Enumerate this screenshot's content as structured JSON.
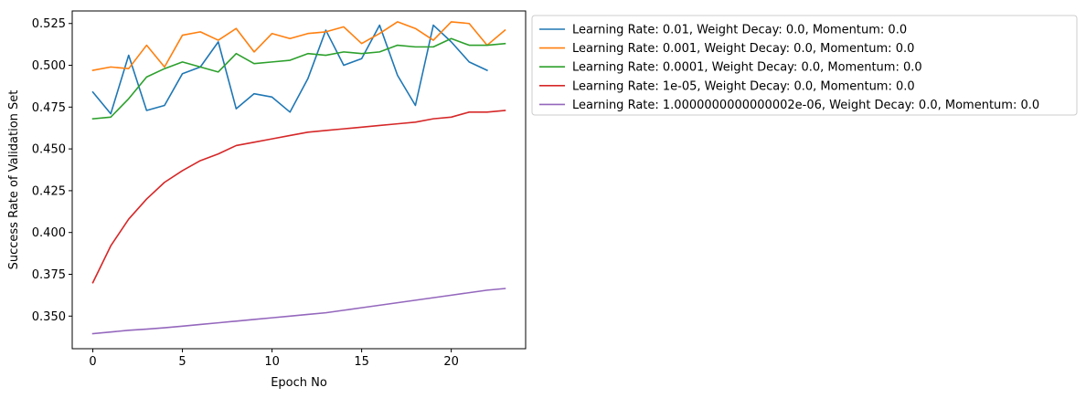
{
  "chart_data": {
    "type": "line",
    "title": "",
    "xlabel": "Epoch No",
    "ylabel": "Success Rate of Validation Set",
    "xlim": [
      -1.15,
      24.15
    ],
    "ylim": [
      0.3305,
      0.5325
    ],
    "xticks": [
      0,
      5,
      10,
      15,
      20
    ],
    "xtick_labels": [
      "0",
      "5",
      "10",
      "15",
      "20"
    ],
    "yticks": [
      0.35,
      0.375,
      0.4,
      0.425,
      0.45,
      0.475,
      0.5,
      0.525
    ],
    "ytick_labels": [
      "0.350",
      "0.375",
      "0.400",
      "0.425",
      "0.450",
      "0.475",
      "0.500",
      "0.525"
    ],
    "grid": false,
    "legend_position": "outside-right-top",
    "series": [
      {
        "name": "Learning Rate: 0.01, Weight Decay: 0.0, Momentum: 0.0",
        "color": "#1f77b4",
        "x": [
          0,
          1,
          2,
          3,
          4,
          5,
          6,
          7,
          8,
          9,
          10,
          11,
          12,
          13,
          14,
          15,
          16,
          17,
          18,
          19,
          20,
          21,
          22
        ],
        "values": [
          0.484,
          0.471,
          0.506,
          0.473,
          0.476,
          0.495,
          0.499,
          0.514,
          0.474,
          0.483,
          0.481,
          0.472,
          0.492,
          0.521,
          0.5,
          0.504,
          0.524,
          0.494,
          0.476,
          0.524,
          0.514,
          0.502,
          0.497
        ]
      },
      {
        "name": "Learning Rate: 0.001, Weight Decay: 0.0, Momentum: 0.0",
        "color": "#ff7f0e",
        "x": [
          0,
          1,
          2,
          3,
          4,
          5,
          6,
          7,
          8,
          9,
          10,
          11,
          12,
          13,
          14,
          15,
          16,
          17,
          18,
          19,
          20,
          21,
          22,
          23
        ],
        "values": [
          0.497,
          0.499,
          0.498,
          0.512,
          0.499,
          0.518,
          0.52,
          0.515,
          0.522,
          0.508,
          0.519,
          0.516,
          0.519,
          0.52,
          0.523,
          0.513,
          0.519,
          0.526,
          0.522,
          0.515,
          0.526,
          0.525,
          0.512,
          0.521
        ]
      },
      {
        "name": "Learning Rate: 0.0001, Weight Decay: 0.0, Momentum: 0.0",
        "color": "#2ca02c",
        "x": [
          0,
          1,
          2,
          3,
          4,
          5,
          6,
          7,
          8,
          9,
          10,
          11,
          12,
          13,
          14,
          15,
          16,
          17,
          18,
          19,
          20,
          21,
          22,
          23
        ],
        "values": [
          0.468,
          0.469,
          0.48,
          0.493,
          0.498,
          0.502,
          0.499,
          0.496,
          0.507,
          0.501,
          0.502,
          0.503,
          0.507,
          0.506,
          0.508,
          0.507,
          0.508,
          0.512,
          0.511,
          0.511,
          0.516,
          0.512,
          0.512,
          0.513
        ]
      },
      {
        "name": "Learning Rate: 1e-05, Weight Decay: 0.0, Momentum: 0.0",
        "color": "#d62728",
        "x": [
          0,
          1,
          2,
          3,
          4,
          5,
          6,
          7,
          8,
          9,
          10,
          11,
          12,
          13,
          14,
          15,
          16,
          17,
          18,
          19,
          20,
          21,
          22,
          23
        ],
        "values": [
          0.37,
          0.392,
          0.408,
          0.42,
          0.43,
          0.437,
          0.443,
          0.447,
          0.452,
          0.454,
          0.456,
          0.458,
          0.46,
          0.461,
          0.462,
          0.463,
          0.464,
          0.465,
          0.466,
          0.468,
          0.469,
          0.472,
          0.472,
          0.473
        ]
      },
      {
        "name": "Learning Rate: 1.0000000000000002e-06, Weight Decay: 0.0, Momentum: 0.0",
        "color": "#9467bd",
        "x": [
          0,
          1,
          2,
          3,
          4,
          5,
          6,
          7,
          8,
          9,
          10,
          11,
          12,
          13,
          14,
          15,
          16,
          17,
          18,
          19,
          20,
          21,
          22,
          23
        ],
        "values": [
          0.3395,
          0.3405,
          0.3415,
          0.3422,
          0.343,
          0.344,
          0.345,
          0.346,
          0.347,
          0.348,
          0.349,
          0.35,
          0.351,
          0.352,
          0.3535,
          0.355,
          0.3565,
          0.358,
          0.3595,
          0.361,
          0.3625,
          0.364,
          0.3655,
          0.3665
        ]
      }
    ]
  }
}
